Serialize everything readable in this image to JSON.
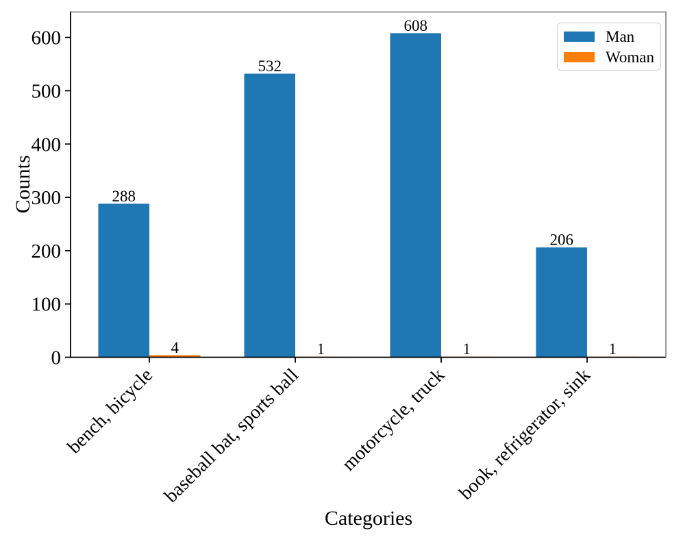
{
  "chart_data": {
    "type": "bar",
    "xlabel": "Categories",
    "ylabel": "Counts",
    "categories": [
      "bench, bicycle",
      "baseball bat, sports ball",
      "motorcycle, truck",
      "book, refrigerator, sink"
    ],
    "series": [
      {
        "name": "Man",
        "color": "#1f77b4",
        "values": [
          288,
          532,
          608,
          206
        ]
      },
      {
        "name": "Woman",
        "color": "#ff7f0e",
        "values": [
          4,
          1,
          1,
          1
        ]
      }
    ],
    "yticks": [
      0,
      100,
      200,
      300,
      400,
      500,
      600
    ],
    "ylim": [
      0,
      649
    ],
    "xlim": [
      -0.54,
      3.54
    ],
    "bar_width_units": 0.35,
    "x_tick_label_rotation": 45,
    "show_value_labels": true,
    "grid": false,
    "legend_position": "upper-right"
  }
}
